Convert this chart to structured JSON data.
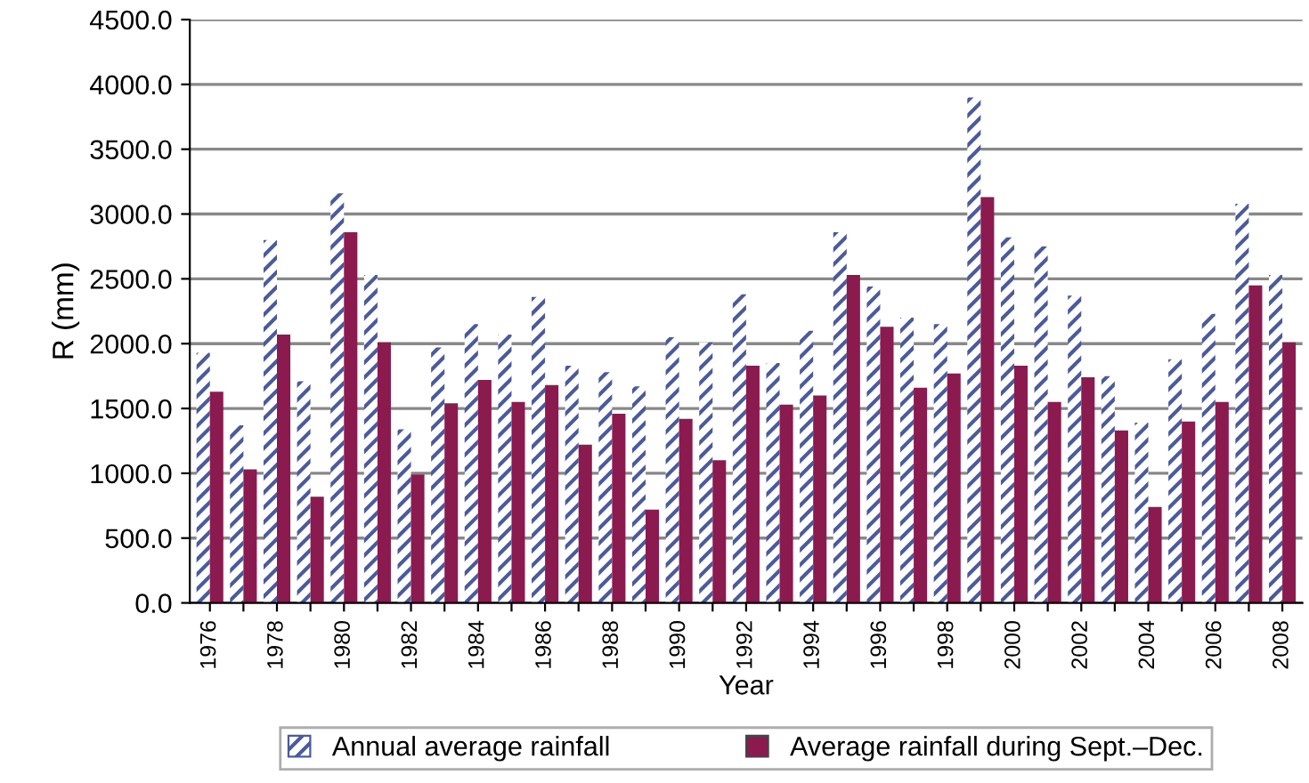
{
  "chart_data": {
    "type": "bar",
    "xlabel": "Year",
    "ylabel": "R (mm)",
    "categories": [
      "1976",
      null,
      "1978",
      null,
      "1980",
      null,
      "1982",
      null,
      "1984",
      null,
      "1986",
      null,
      "1988",
      null,
      "1990",
      null,
      "1992",
      null,
      "1994",
      null,
      "1996",
      null,
      "1998",
      null,
      "2000",
      null,
      "2002",
      null,
      "2004",
      null,
      "2006",
      null,
      "2008"
    ],
    "series": [
      {
        "name": "Annual average rainfall",
        "color": "#4a5a9c",
        "values": [
          1930,
          1370,
          2800,
          1710,
          3160,
          2530,
          1340,
          1970,
          2150,
          2070,
          2360,
          1830,
          1780,
          1670,
          2050,
          2010,
          2380,
          1850,
          2100,
          2860,
          2440,
          2200,
          2150,
          3900,
          2820,
          2750,
          2370,
          1750,
          1390,
          1880,
          2230,
          3080,
          2530
        ]
      },
      {
        "name": "Average rainfall during Sept.–Dec.",
        "color": "#8b1a4f",
        "values": [
          1630,
          1030,
          2070,
          820,
          2860,
          2010,
          990,
          1540,
          1720,
          1550,
          1680,
          1220,
          1460,
          720,
          1420,
          1100,
          1830,
          1530,
          1600,
          2530,
          2130,
          1660,
          1770,
          3130,
          1830,
          1550,
          1740,
          1330,
          740,
          1400,
          1550,
          2450,
          2010
        ]
      }
    ],
    "ylim": [
      0,
      4500
    ],
    "yticks": [
      {
        "value": 0,
        "label": "0.0"
      },
      {
        "value": 500,
        "label": "500.0"
      },
      {
        "value": 1000,
        "label": "1000.0"
      },
      {
        "value": 1500,
        "label": "1500.0"
      },
      {
        "value": 2000,
        "label": "2000.0"
      },
      {
        "value": 2500,
        "label": "2500.0"
      },
      {
        "value": 3000,
        "label": "3000.0"
      },
      {
        "value": 3500,
        "label": "3500.0"
      },
      {
        "value": 4000,
        "label": "4000.0"
      },
      {
        "value": 4500,
        "label": "4500.0"
      }
    ],
    "grid": "y",
    "legend": "bottom"
  }
}
